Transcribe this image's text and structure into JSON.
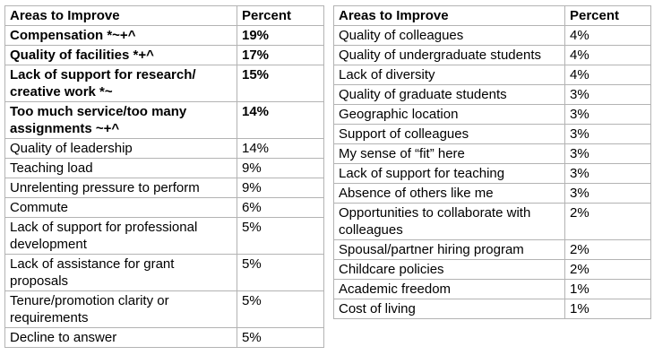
{
  "left_table": {
    "headers": [
      "Areas to Improve",
      "Percent"
    ],
    "rows": [
      {
        "area": "Compensation *~+^",
        "percent": "19%",
        "bold": true
      },
      {
        "area": "Quality of facilities *+^",
        "percent": "17%",
        "bold": true
      },
      {
        "area": "Lack of support for research/ creative work *~",
        "percent": "15%",
        "bold": true
      },
      {
        "area": "Too much service/too many assignments ~+^",
        "percent": "14%",
        "bold": true
      },
      {
        "area": "Quality of leadership",
        "percent": "14%",
        "bold": false
      },
      {
        "area": "Teaching load",
        "percent": "9%",
        "bold": false
      },
      {
        "area": "Unrelenting pressure to perform",
        "percent": "9%",
        "bold": false
      },
      {
        "area": "Commute",
        "percent": "6%",
        "bold": false
      },
      {
        "area": "Lack of support for professional development",
        "percent": "5%",
        "bold": false
      },
      {
        "area": "Lack of assistance for grant proposals",
        "percent": "5%",
        "bold": false
      },
      {
        "area": "Tenure/promotion clarity or requirements",
        "percent": "5%",
        "bold": false
      },
      {
        "area": "Decline to answer",
        "percent": "5%",
        "bold": false
      }
    ]
  },
  "right_table": {
    "headers": [
      "Areas to Improve",
      "Percent"
    ],
    "rows": [
      {
        "area": "Quality of colleagues",
        "percent": "4%"
      },
      {
        "area": "Quality of undergraduate students",
        "percent": "4%"
      },
      {
        "area": "Lack of diversity",
        "percent": "4%"
      },
      {
        "area": "Quality of graduate students",
        "percent": "3%"
      },
      {
        "area": "Geographic location",
        "percent": "3%"
      },
      {
        "area": "Support of colleagues",
        "percent": "3%"
      },
      {
        "area": "My sense of “fit” here",
        "percent": "3%"
      },
      {
        "area": "Lack of support for teaching",
        "percent": "3%"
      },
      {
        "area": "Absence of others like me",
        "percent": "3%"
      },
      {
        "area": "Opportunities to collaborate with colleagues",
        "percent": "2%"
      },
      {
        "area": "Spousal/partner hiring program",
        "percent": "2%"
      },
      {
        "area": "Childcare policies",
        "percent": "2%"
      },
      {
        "area": "Academic freedom",
        "percent": "1%"
      },
      {
        "area": "Cost of living",
        "percent": "1%"
      }
    ]
  }
}
